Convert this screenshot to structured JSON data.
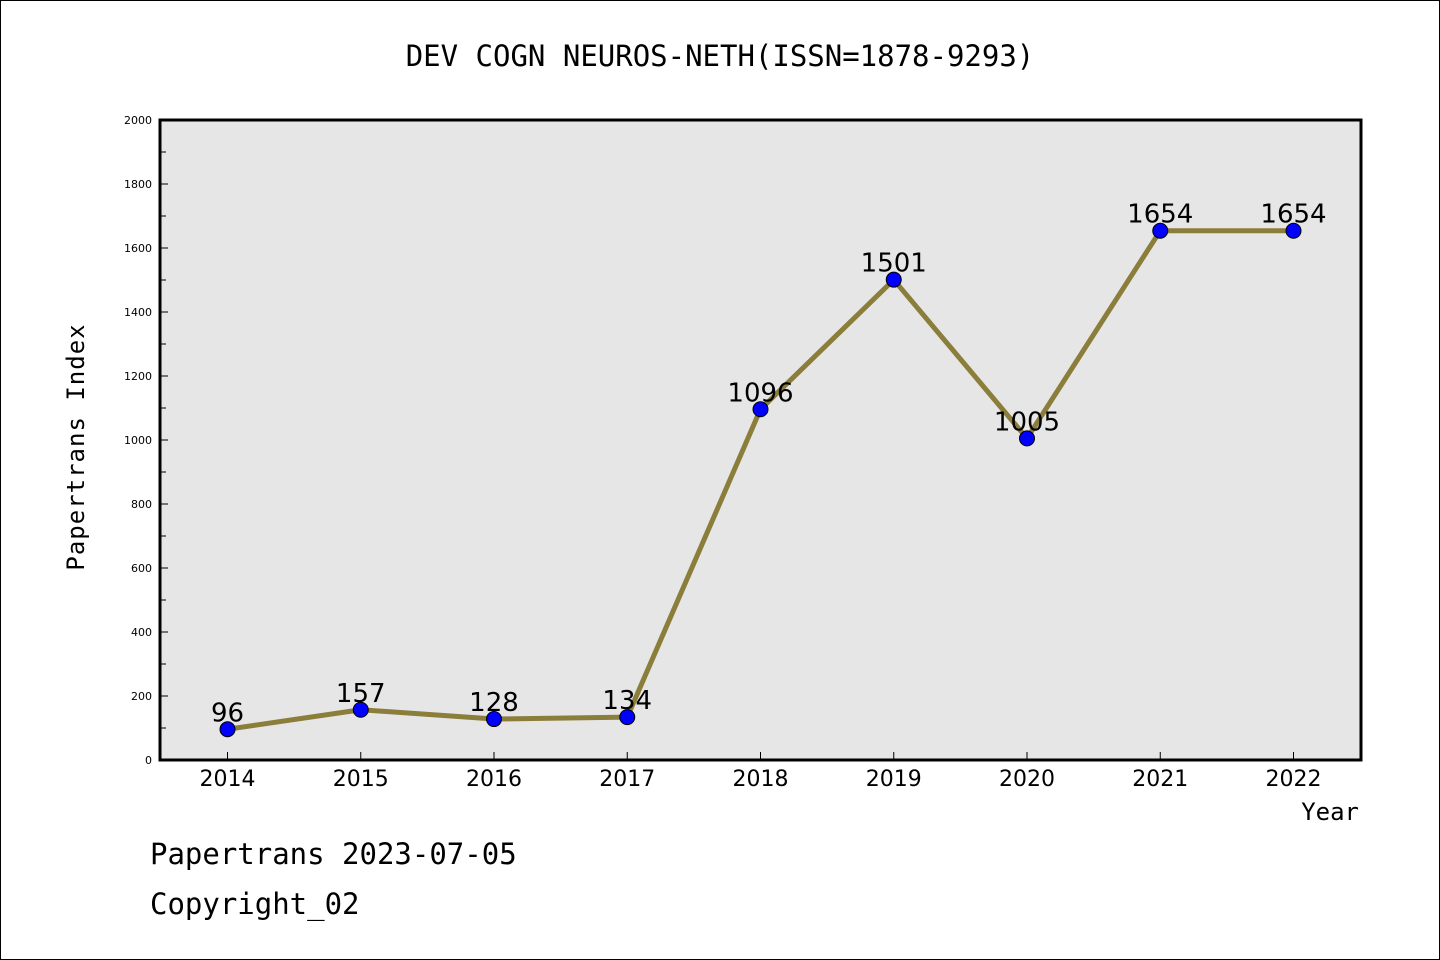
{
  "chart_data": {
    "type": "line",
    "title": "DEV COGN NEUROS-NETH(ISSN=1878-9293)",
    "xlabel": "Year",
    "ylabel": "Papertrans Index",
    "categories": [
      "2014",
      "2015",
      "2016",
      "2017",
      "2018",
      "2019",
      "2020",
      "2021",
      "2022"
    ],
    "series": [
      {
        "values": [
          96,
          157,
          128,
          134,
          1096,
          1501,
          1005,
          1654,
          1654
        ]
      }
    ],
    "ylim": [
      0,
      2000
    ],
    "yticks": [
      "0",
      "200",
      "400",
      "600",
      "800",
      "1000",
      "1200",
      "1400",
      "1600",
      "1800",
      "2000"
    ],
    "data_labels": [
      "96",
      "157",
      "128",
      "134",
      "1096",
      "1501",
      "1005",
      "1654",
      "1654"
    ],
    "grid": false,
    "colors": {
      "line": "#8b7d3a",
      "marker": "#0000ff",
      "plot_background": "#e6e6e6"
    }
  },
  "footer": {
    "line1": "Papertrans 2023-07-05",
    "line2": "Copyright_02"
  }
}
